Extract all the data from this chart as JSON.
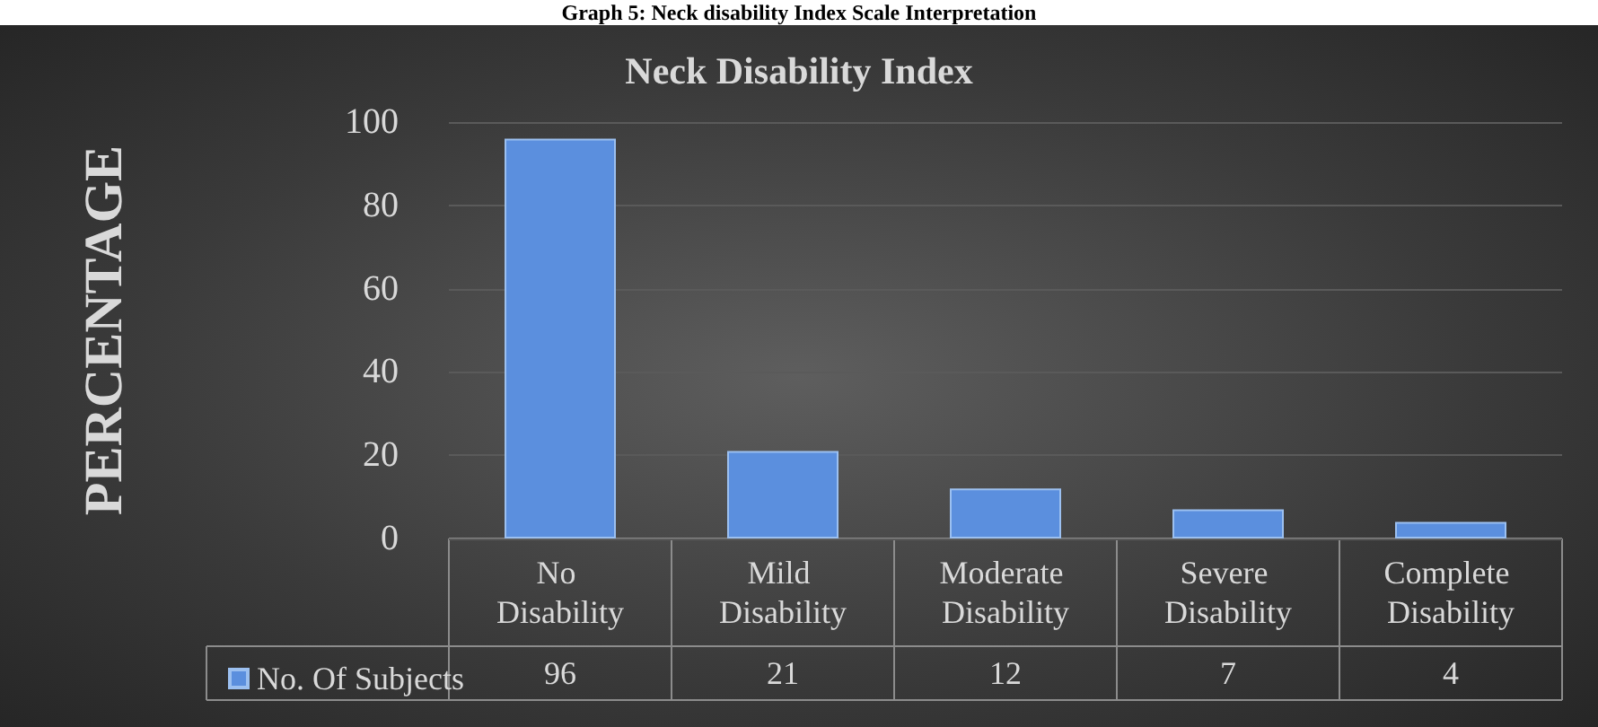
{
  "chart_data": {
    "type": "bar",
    "title": "Neck Disability Index",
    "subtitle": "Graph 5: Neck disability Index Scale Interpretation",
    "ylabel": "PERCENTAGE",
    "categories": [
      "No Disability",
      "Mild Disability",
      "Moderate Disability",
      "Severe Disability",
      "Complete Disability"
    ],
    "series": [
      {
        "name": "No. Of Subjects",
        "color": "#5b8fde",
        "values": [
          96,
          21,
          12,
          7,
          4
        ]
      }
    ],
    "ylim": [
      0,
      100
    ],
    "yticks": [
      0,
      20,
      40,
      60,
      80,
      100
    ],
    "grid": "y",
    "legend": "bottom",
    "data_labels": true
  }
}
